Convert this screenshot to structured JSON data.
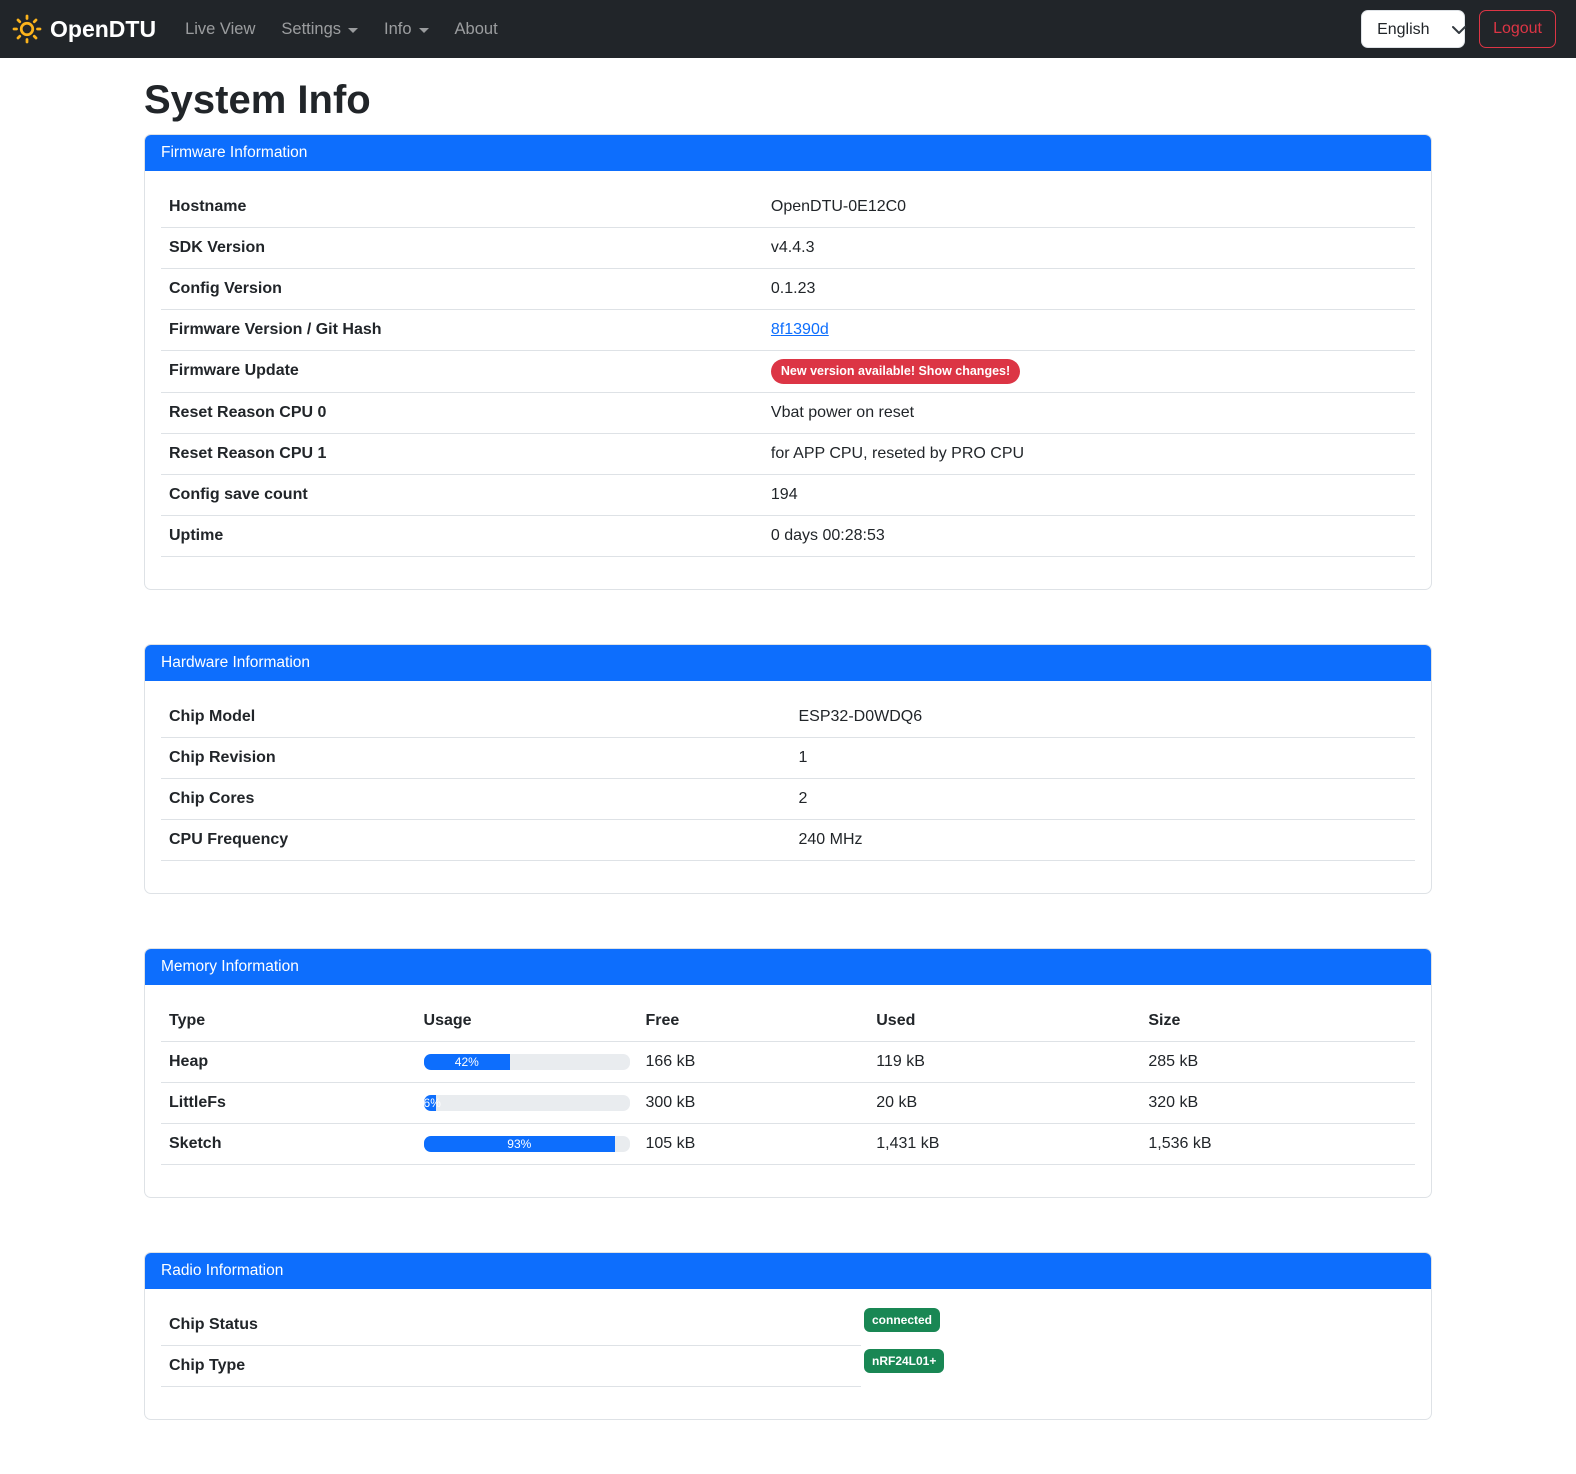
{
  "navbar": {
    "brand": "OpenDTU",
    "items": [
      {
        "label": "Live View"
      },
      {
        "label": "Settings"
      },
      {
        "label": "Info"
      },
      {
        "label": "About"
      }
    ],
    "language_selected": "English",
    "logout_label": "Logout"
  },
  "page_title": "System Info",
  "colors": {
    "primary": "#0d6efd",
    "danger": "#dc3545",
    "success": "#198754",
    "navbar_bg": "#212529",
    "progress_track": "#e9ecef",
    "border": "#dee2e6"
  },
  "firmware_card": {
    "title": "Firmware Information",
    "rows": [
      {
        "label": "Hostname",
        "value": "OpenDTU-0E12C0"
      },
      {
        "label": "SDK Version",
        "value": "v4.4.3"
      },
      {
        "label": "Config Version",
        "value": "0.1.23"
      },
      {
        "label": "Firmware Version / Git Hash",
        "value": "8f1390d"
      },
      {
        "label": "Firmware Update",
        "value": "New version available! Show changes!"
      },
      {
        "label": "Reset Reason CPU 0",
        "value": "Vbat power on reset"
      },
      {
        "label": "Reset Reason CPU 1",
        "value": "for APP CPU, reseted by PRO CPU"
      },
      {
        "label": "Config save count",
        "value": "194"
      },
      {
        "label": "Uptime",
        "value": "0 days 00:28:53"
      }
    ]
  },
  "hardware_card": {
    "title": "Hardware Information",
    "rows": [
      {
        "label": "Chip Model",
        "value": "ESP32-D0WDQ6"
      },
      {
        "label": "Chip Revision",
        "value": "1"
      },
      {
        "label": "Chip Cores",
        "value": "2"
      },
      {
        "label": "CPU Frequency",
        "value": "240 MHz"
      }
    ]
  },
  "memory_card": {
    "title": "Memory Information",
    "headers": [
      "Type",
      "Usage",
      "Free",
      "Used",
      "Size"
    ],
    "rows": [
      {
        "type": "Heap",
        "usage_pct": 42,
        "free": "166 kB",
        "used": "119 kB",
        "size": "285 kB"
      },
      {
        "type": "LittleFs",
        "usage_pct": 6,
        "free": "300 kB",
        "used": "20 kB",
        "size": "320 kB"
      },
      {
        "type": "Sketch",
        "usage_pct": 93,
        "free": "105 kB",
        "used": "1,431 kB",
        "size": "1,536 kB"
      }
    ]
  },
  "radio_card": {
    "title": "Radio Information",
    "rows": [
      {
        "label": "Chip Status",
        "badge": "connected"
      },
      {
        "label": "Chip Type",
        "badge": "nRF24L01+"
      }
    ]
  }
}
